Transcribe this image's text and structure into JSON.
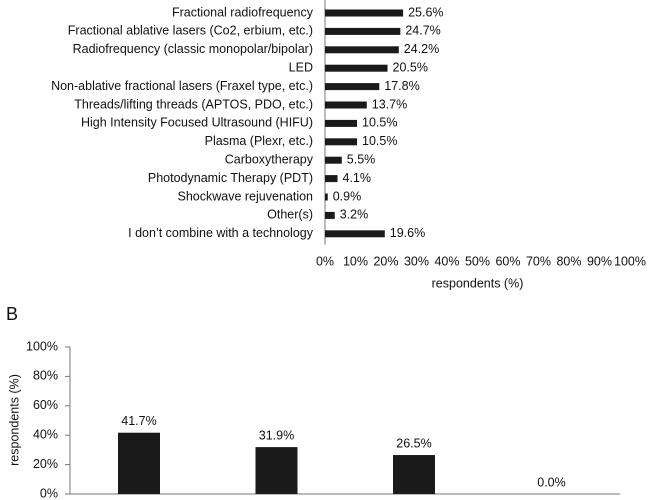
{
  "chart_data": [
    {
      "type": "hbar",
      "xlabel": "respondents (%)",
      "color": "#1a1a1a",
      "categories": [
        "Fractional radiofrequency",
        "Fractional ablative lasers (Co2, erbium, etc.)",
        "Radiofrequency (classic monopolar/bipolar)",
        "LED",
        "Non-ablative fractional lasers (Fraxel type, etc.)",
        "Threads/lifting threads (APTOS, PDO, etc.)",
        "High Intensity Focused Ultrasound (HIFU)",
        "Plasma (Plexr, etc.)",
        "Carboxytherapy",
        "Photodynamic Therapy (PDT)",
        "Shockwave rejuvenation",
        "Other(s)",
        "I don’t combine with a technology"
      ],
      "values": [
        25.6,
        24.7,
        24.2,
        20.5,
        17.8,
        13.7,
        10.5,
        10.5,
        5.5,
        4.1,
        0.9,
        3.2,
        19.6
      ],
      "value_labels": [
        "25.6%",
        "24.7%",
        "24.2%",
        "20.5%",
        "17.8%",
        "13.7%",
        "10.5%",
        "10.5%",
        "5.5%",
        "4.1%",
        "0.9%",
        "3.2%",
        "19.6%"
      ],
      "xlim": [
        0,
        100
      ],
      "xticks": [
        {
          "value": 0,
          "label": "0%"
        },
        {
          "value": 10,
          "label": "10%"
        },
        {
          "value": 20,
          "label": "20%"
        },
        {
          "value": 30,
          "label": "30%"
        },
        {
          "value": 40,
          "label": "40%"
        },
        {
          "value": 50,
          "label": "50%"
        },
        {
          "value": 60,
          "label": "60%"
        },
        {
          "value": 70,
          "label": "70%"
        },
        {
          "value": 80,
          "label": "80%"
        },
        {
          "value": 90,
          "label": "90%"
        },
        {
          "value": 100,
          "label": "100%"
        }
      ]
    },
    {
      "type": "bar",
      "panel_label": "B",
      "ylabel": "respondents (%)",
      "color": "#1a1a1a",
      "categories": [
        null,
        null,
        null,
        null
      ],
      "values": [
        41.7,
        31.9,
        26.5,
        0.0
      ],
      "value_labels": [
        "41.7%",
        "31.9%",
        "26.5%",
        "0.0%"
      ],
      "ylim": [
        0,
        100
      ],
      "yticks": [
        {
          "value": 0,
          "label": "0%"
        },
        {
          "value": 20,
          "label": "20%"
        },
        {
          "value": 40,
          "label": "40%"
        },
        {
          "value": 60,
          "label": "60%"
        },
        {
          "value": 80,
          "label": "80%"
        },
        {
          "value": 100,
          "label": "100%"
        }
      ]
    }
  ]
}
